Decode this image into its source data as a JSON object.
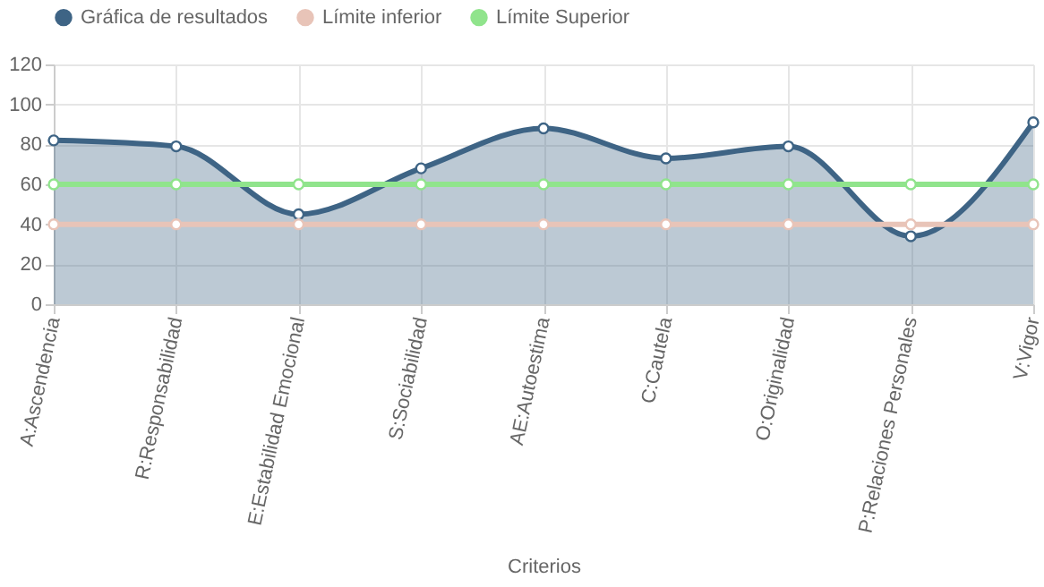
{
  "chart_data": {
    "type": "line",
    "xlabel": "Criterios",
    "categories": [
      "A:Ascendencia",
      "R:Responsabilidad",
      "E:Estabilidad Emocional",
      "S:Sociabilidad",
      "AE:Autoestima",
      "C:Cautela",
      "O:Originalidad",
      "P:Relaciones Personales",
      "V:Vigor"
    ],
    "series": [
      {
        "name": "Gráfica de resultados",
        "type": "area",
        "color": "#3e6485",
        "values": [
          82,
          79,
          45,
          68,
          88,
          73,
          79,
          34,
          91
        ]
      },
      {
        "name": "Límite inferior",
        "color": "#e8c4b8",
        "values": [
          40,
          40,
          40,
          40,
          40,
          40,
          40,
          40,
          40
        ]
      },
      {
        "name": "Límite Superior",
        "color": "#90e48c",
        "values": [
          60,
          60,
          60,
          60,
          60,
          60,
          60,
          60,
          60
        ]
      }
    ],
    "ylim": [
      0,
      120
    ],
    "yticks": [
      0,
      20,
      40,
      60,
      80,
      100,
      120
    ],
    "grid": true,
    "legend": "top",
    "marker": "circle",
    "line_style": "solid"
  }
}
